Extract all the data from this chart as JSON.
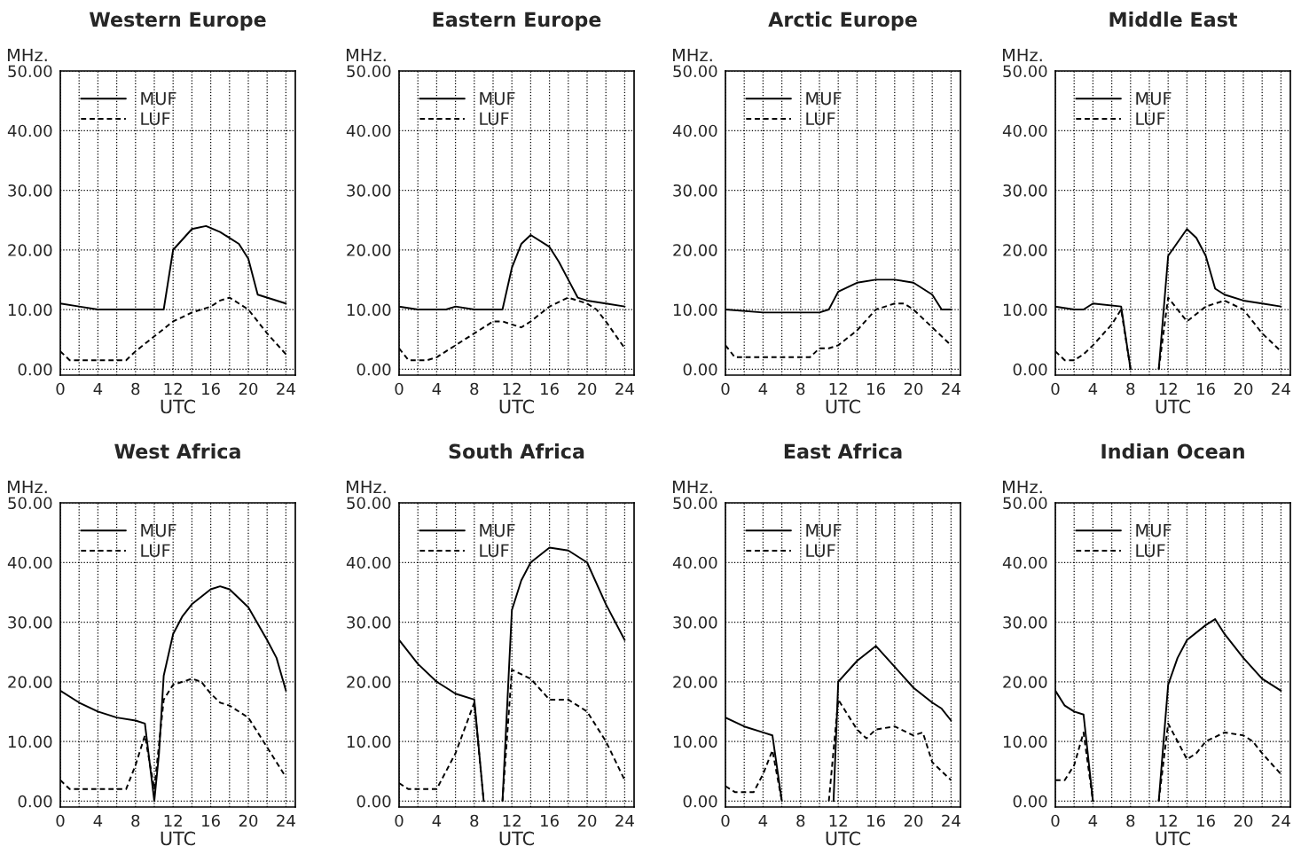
{
  "chart_data": [
    {
      "type": "line",
      "title": "Western Europe",
      "xlabel": "UTC",
      "ylabel": "MHz.",
      "xlim": [
        0,
        25
      ],
      "ylim": [
        -1,
        50
      ],
      "xticks": [
        0,
        {
          "value": 2,
          "label": null
        },
        4,
        {
          "value": 6,
          "label": null
        },
        8,
        {
          "value": 10,
          "label": null
        },
        12,
        {
          "value": 14,
          "label": null
        },
        16,
        {
          "value": 18,
          "label": null
        },
        20,
        {
          "value": 22,
          "label": null
        },
        24
      ],
      "yticks": [
        {
          "value": 0,
          "label": "0.00"
        },
        {
          "value": 10,
          "label": "10.00"
        },
        {
          "value": 20,
          "label": "20.00"
        },
        {
          "value": 30,
          "label": "30.00"
        },
        {
          "value": 40,
          "label": "40.00"
        },
        {
          "value": 50,
          "label": "50.00"
        }
      ],
      "grid": true,
      "legend": "top left",
      "series": [
        {
          "name": "MUF",
          "color": "#000000",
          "line_style": "solid",
          "x": [
            0,
            2,
            4,
            8,
            11,
            12,
            14,
            15.5,
            17,
            19,
            20,
            21,
            24
          ],
          "values": [
            11,
            10.5,
            10,
            10,
            10,
            20,
            23.5,
            24,
            23,
            21,
            18.5,
            12.5,
            11
          ]
        },
        {
          "name": "LUF",
          "color": "#000000",
          "line_style": "dashed",
          "x": [
            0,
            1,
            4,
            7,
            8,
            10,
            12,
            14,
            16,
            17,
            18,
            19,
            20,
            22,
            24
          ],
          "values": [
            3,
            1.5,
            1.5,
            1.5,
            3,
            5.5,
            8,
            9.5,
            10.5,
            11.5,
            12,
            11,
            10,
            6,
            2.5
          ]
        }
      ]
    },
    {
      "type": "line",
      "title": "Eastern Europe",
      "xlabel": "UTC",
      "ylabel": "MHz.",
      "xlim": [
        0,
        25
      ],
      "ylim": [
        -1,
        50
      ],
      "xticks": [
        0,
        {
          "value": 2,
          "label": null
        },
        4,
        {
          "value": 6,
          "label": null
        },
        8,
        {
          "value": 10,
          "label": null
        },
        12,
        {
          "value": 14,
          "label": null
        },
        16,
        {
          "value": 18,
          "label": null
        },
        20,
        {
          "value": 22,
          "label": null
        },
        24
      ],
      "yticks": [
        {
          "value": 0,
          "label": "0.00"
        },
        {
          "value": 10,
          "label": "10.00"
        },
        {
          "value": 20,
          "label": "20.00"
        },
        {
          "value": 30,
          "label": "30.00"
        },
        {
          "value": 40,
          "label": "40.00"
        },
        {
          "value": 50,
          "label": "50.00"
        }
      ],
      "grid": true,
      "legend": "top left",
      "series": [
        {
          "name": "MUF",
          "color": "#000000",
          "line_style": "solid",
          "x": [
            0,
            2,
            5,
            6,
            8,
            11,
            12,
            13,
            14,
            16,
            17,
            18,
            19,
            20,
            22,
            24
          ],
          "values": [
            10.5,
            10,
            10,
            10.5,
            10,
            10,
            17,
            21,
            22.5,
            20.5,
            18,
            15,
            12,
            11.5,
            11,
            10.5
          ]
        },
        {
          "name": "LUF",
          "color": "#000000",
          "line_style": "dashed",
          "x": [
            0,
            1,
            3,
            4,
            6,
            8,
            10,
            11,
            12,
            13,
            14,
            16,
            18,
            20,
            21,
            22,
            24
          ],
          "values": [
            3.5,
            1.5,
            1.5,
            2,
            4,
            6,
            8,
            8,
            7.5,
            7,
            8,
            10.5,
            12,
            11,
            10,
            8,
            3.5
          ]
        }
      ]
    },
    {
      "type": "line",
      "title": "Arctic Europe",
      "xlabel": "UTC",
      "ylabel": "MHz.",
      "xlim": [
        0,
        25
      ],
      "ylim": [
        -1,
        50
      ],
      "xticks": [
        0,
        {
          "value": 2,
          "label": null
        },
        4,
        {
          "value": 6,
          "label": null
        },
        8,
        {
          "value": 10,
          "label": null
        },
        12,
        {
          "value": 14,
          "label": null
        },
        16,
        {
          "value": 18,
          "label": null
        },
        20,
        {
          "value": 22,
          "label": null
        },
        24
      ],
      "yticks": [
        {
          "value": 0,
          "label": "0.00"
        },
        {
          "value": 10,
          "label": "10.00"
        },
        {
          "value": 20,
          "label": "20.00"
        },
        {
          "value": 30,
          "label": "30.00"
        },
        {
          "value": 40,
          "label": "40.00"
        },
        {
          "value": 50,
          "label": "50.00"
        }
      ],
      "grid": true,
      "legend": "top left",
      "series": [
        {
          "name": "MUF",
          "color": "#000000",
          "line_style": "solid",
          "x": [
            0,
            4,
            8,
            10,
            11,
            12,
            14,
            16,
            18,
            20,
            22,
            23,
            24
          ],
          "values": [
            10,
            9.5,
            9.5,
            9.5,
            10,
            13,
            14.5,
            15,
            15,
            14.5,
            12.5,
            10,
            10
          ]
        },
        {
          "name": "LUF",
          "color": "#000000",
          "line_style": "dashed",
          "x": [
            0,
            1,
            4,
            8,
            9,
            10,
            11,
            12,
            14,
            16,
            18,
            19,
            20,
            22,
            24
          ],
          "values": [
            4,
            2,
            2,
            2,
            2,
            3.5,
            3.5,
            4,
            6.5,
            10,
            11,
            11,
            10,
            7,
            4
          ]
        }
      ]
    },
    {
      "type": "line",
      "title": "Middle East",
      "xlabel": "UTC",
      "ylabel": "MHz.",
      "xlim": [
        0,
        25
      ],
      "ylim": [
        -1,
        50
      ],
      "xticks": [
        0,
        {
          "value": 2,
          "label": null
        },
        4,
        {
          "value": 6,
          "label": null
        },
        8,
        {
          "value": 10,
          "label": null
        },
        12,
        {
          "value": 14,
          "label": null
        },
        16,
        {
          "value": 18,
          "label": null
        },
        20,
        {
          "value": 22,
          "label": null
        },
        24
      ],
      "yticks": [
        {
          "value": 0,
          "label": "0.00"
        },
        {
          "value": 10,
          "label": "10.00"
        },
        {
          "value": 20,
          "label": "20.00"
        },
        {
          "value": 30,
          "label": "30.00"
        },
        {
          "value": 40,
          "label": "40.00"
        },
        {
          "value": 50,
          "label": "50.00"
        }
      ],
      "grid": true,
      "legend": "top left",
      "series": [
        {
          "name": "MUF",
          "color": "#000000",
          "line_style": "solid",
          "x": [
            0,
            2,
            3,
            4,
            7,
            8,
            9,
            11,
            12,
            14,
            15,
            16,
            17,
            18,
            20,
            22,
            24
          ],
          "values": [
            10.5,
            10,
            10,
            11,
            10.5,
            0,
            null,
            0,
            19,
            23.5,
            22,
            19,
            13.5,
            12.5,
            11.5,
            11,
            10.5
          ]
        },
        {
          "name": "LUF",
          "color": "#000000",
          "line_style": "dashed",
          "x": [
            0,
            1,
            2,
            3,
            4,
            6,
            7,
            8,
            9,
            11,
            12,
            13,
            14,
            16,
            18,
            20,
            22,
            24
          ],
          "values": [
            3,
            1.5,
            1.5,
            2.5,
            4,
            7.5,
            10,
            0,
            null,
            0,
            12,
            10,
            8,
            10.5,
            11.5,
            10,
            6,
            3
          ]
        }
      ]
    },
    {
      "type": "line",
      "title": "West Africa",
      "xlabel": "UTC",
      "ylabel": "MHz.",
      "xlim": [
        0,
        25
      ],
      "ylim": [
        -1,
        50
      ],
      "xticks": [
        0,
        {
          "value": 2,
          "label": null
        },
        4,
        {
          "value": 6,
          "label": null
        },
        8,
        {
          "value": 10,
          "label": null
        },
        12,
        {
          "value": 14,
          "label": null
        },
        16,
        {
          "value": 18,
          "label": null
        },
        20,
        {
          "value": 22,
          "label": null
        },
        24
      ],
      "yticks": [
        {
          "value": 0,
          "label": "0.00"
        },
        {
          "value": 10,
          "label": "10.00"
        },
        {
          "value": 20,
          "label": "20.00"
        },
        {
          "value": 30,
          "label": "30.00"
        },
        {
          "value": 40,
          "label": "40.00"
        },
        {
          "value": 50,
          "label": "50.00"
        }
      ],
      "grid": true,
      "legend": "top left",
      "series": [
        {
          "name": "MUF",
          "color": "#000000",
          "line_style": "solid",
          "x": [
            0,
            2,
            4,
            6,
            8,
            9,
            10,
            10.5,
            11,
            12,
            13,
            14,
            16,
            17,
            18,
            20,
            22,
            23,
            24
          ],
          "values": [
            18.5,
            16.5,
            15,
            14,
            13.5,
            13,
            0,
            8,
            21,
            28,
            31,
            33,
            35.5,
            36,
            35.5,
            32.5,
            27,
            24,
            18.5
          ]
        },
        {
          "name": "LUF",
          "color": "#000000",
          "line_style": "dashed",
          "x": [
            0,
            1,
            4,
            7,
            8,
            9,
            10,
            11,
            12,
            14,
            15,
            16,
            17,
            18,
            20,
            22,
            24
          ],
          "values": [
            3.5,
            2,
            2,
            2,
            6,
            11,
            2,
            17,
            19.5,
            20.5,
            20,
            18,
            16.5,
            16,
            14,
            9,
            4
          ]
        }
      ]
    },
    {
      "type": "line",
      "title": "South Africa",
      "xlabel": "UTC",
      "ylabel": "MHz.",
      "xlim": [
        0,
        25
      ],
      "ylim": [
        -1,
        50
      ],
      "xticks": [
        0,
        {
          "value": 2,
          "label": null
        },
        4,
        {
          "value": 6,
          "label": null
        },
        8,
        {
          "value": 10,
          "label": null
        },
        12,
        {
          "value": 14,
          "label": null
        },
        16,
        {
          "value": 18,
          "label": null
        },
        20,
        {
          "value": 22,
          "label": null
        },
        24
      ],
      "yticks": [
        {
          "value": 0,
          "label": "0.00"
        },
        {
          "value": 10,
          "label": "10.00"
        },
        {
          "value": 20,
          "label": "20.00"
        },
        {
          "value": 30,
          "label": "30.00"
        },
        {
          "value": 40,
          "label": "40.00"
        },
        {
          "value": 50,
          "label": "50.00"
        }
      ],
      "grid": true,
      "legend": "top left",
      "series": [
        {
          "name": "MUF",
          "color": "#000000",
          "line_style": "solid",
          "x": [
            0,
            2,
            4,
            6,
            8,
            9,
            10,
            11,
            12,
            13,
            14,
            16,
            18,
            20,
            22,
            24
          ],
          "values": [
            27,
            23,
            20,
            18,
            17,
            0,
            null,
            0,
            32,
            37,
            40,
            42.5,
            42,
            40,
            33,
            27
          ]
        },
        {
          "name": "LUF",
          "color": "#000000",
          "line_style": "dashed",
          "x": [
            0,
            1,
            3,
            4,
            6,
            8,
            9,
            10,
            11,
            12,
            14,
            16,
            18,
            20,
            22,
            24
          ],
          "values": [
            3,
            2,
            2,
            2,
            8,
            16.5,
            0,
            null,
            0,
            22,
            20.5,
            17,
            17,
            15,
            10,
            3.5
          ]
        }
      ]
    },
    {
      "type": "line",
      "title": "East Africa",
      "xlabel": "UTC",
      "ylabel": "MHz.",
      "xlim": [
        0,
        25
      ],
      "ylim": [
        -1,
        50
      ],
      "xticks": [
        0,
        {
          "value": 2,
          "label": null
        },
        4,
        {
          "value": 6,
          "label": null
        },
        8,
        {
          "value": 10,
          "label": null
        },
        12,
        {
          "value": 14,
          "label": null
        },
        16,
        {
          "value": 18,
          "label": null
        },
        20,
        {
          "value": 22,
          "label": null
        },
        24
      ],
      "yticks": [
        {
          "value": 0,
          "label": "0.00"
        },
        {
          "value": 10,
          "label": "10.00"
        },
        {
          "value": 20,
          "label": "20.00"
        },
        {
          "value": 30,
          "label": "30.00"
        },
        {
          "value": 40,
          "label": "40.00"
        },
        {
          "value": 50,
          "label": "50.00"
        }
      ],
      "grid": true,
      "legend": "top left",
      "series": [
        {
          "name": "MUF",
          "color": "#000000",
          "line_style": "solid",
          "x": [
            0,
            2,
            4,
            5,
            6,
            8,
            11.5,
            12,
            14,
            16,
            18,
            20,
            22,
            23,
            24
          ],
          "values": [
            14,
            12.5,
            11.5,
            11,
            0,
            null,
            0,
            20,
            23.5,
            26,
            22.5,
            19,
            16.5,
            15.5,
            13.5
          ]
        },
        {
          "name": "LUF",
          "color": "#000000",
          "line_style": "dashed",
          "x": [
            0,
            1,
            3,
            4,
            5,
            6,
            8,
            11,
            12,
            14,
            15,
            16,
            18,
            20,
            21,
            22,
            24
          ],
          "values": [
            2.5,
            1.5,
            1.5,
            4.5,
            8.5,
            0,
            null,
            0,
            17,
            12,
            10.5,
            12,
            12.5,
            11,
            11.5,
            6.5,
            3.5
          ]
        }
      ]
    },
    {
      "type": "line",
      "title": "Indian Ocean",
      "xlabel": "UTC",
      "ylabel": "MHz.",
      "xlim": [
        0,
        25
      ],
      "ylim": [
        -1,
        50
      ],
      "xticks": [
        0,
        {
          "value": 2,
          "label": null
        },
        4,
        {
          "value": 6,
          "label": null
        },
        8,
        {
          "value": 10,
          "label": null
        },
        12,
        {
          "value": 14,
          "label": null
        },
        16,
        {
          "value": 18,
          "label": null
        },
        20,
        {
          "value": 22,
          "label": null
        },
        24
      ],
      "yticks": [
        {
          "value": 0,
          "label": "0.00"
        },
        {
          "value": 10,
          "label": "10.00"
        },
        {
          "value": 20,
          "label": "20.00"
        },
        {
          "value": 30,
          "label": "30.00"
        },
        {
          "value": 40,
          "label": "40.00"
        },
        {
          "value": 50,
          "label": "50.00"
        }
      ],
      "grid": true,
      "legend": "top left",
      "series": [
        {
          "name": "MUF",
          "color": "#000000",
          "line_style": "solid",
          "x": [
            0,
            1,
            2,
            3,
            4,
            6,
            11,
            12,
            13,
            14,
            16,
            17,
            18,
            20,
            22,
            24
          ],
          "values": [
            18.5,
            16,
            15,
            14.5,
            0,
            null,
            0,
            19.5,
            24,
            27,
            29.5,
            30.5,
            28,
            24,
            20.5,
            18.5
          ]
        },
        {
          "name": "LUF",
          "color": "#000000",
          "line_style": "dashed",
          "x": [
            0,
            1,
            2,
            3,
            4,
            6,
            11,
            12,
            13,
            14,
            15,
            16,
            18,
            20,
            21,
            22,
            24
          ],
          "values": [
            3.5,
            3.5,
            6,
            11.5,
            0,
            null,
            0,
            13,
            10,
            7,
            8,
            10,
            11.5,
            11,
            10,
            8,
            4.5
          ]
        }
      ]
    }
  ]
}
